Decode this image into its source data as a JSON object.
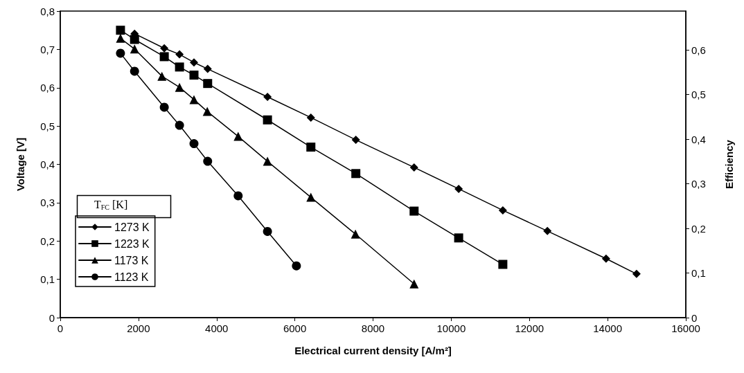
{
  "chart_data": {
    "type": "line",
    "xlabel": "Electrical current density [A/m²]",
    "ylabel": "Voltage [V]",
    "y2label": "Efficiency",
    "legend_title": "T$_{FC}$ [K]",
    "legend": "bottom left",
    "grid": false,
    "line_style": "solid",
    "xlim": [
      0,
      16000
    ],
    "xticks": [
      0,
      2000,
      4000,
      6000,
      8000,
      10000,
      12000,
      14000,
      16000
    ],
    "ylim": [
      0,
      0.8
    ],
    "yticks": [
      0,
      {
        "value": 0.1,
        "label": "0,1"
      },
      {
        "value": 0.2,
        "label": "0,2"
      },
      {
        "value": 0.3,
        "label": "0,3"
      },
      {
        "value": 0.4,
        "label": "0,4"
      },
      {
        "value": 0.5,
        "label": "0,5"
      },
      {
        "value": 0.6,
        "label": "0,6"
      },
      {
        "value": 0.7,
        "label": "0,7"
      },
      {
        "value": 0.8,
        "label": "0,8"
      }
    ],
    "y2lim": [
      0,
      0.687
    ],
    "y2ticks": [
      0,
      {
        "value": 0.1,
        "label": "0,1"
      },
      {
        "value": 0.2,
        "label": "0,2"
      },
      {
        "value": 0.3,
        "label": "0,3"
      },
      {
        "value": 0.4,
        "label": "0,4"
      },
      {
        "value": 0.5,
        "label": "0,5"
      },
      {
        "value": 0.6,
        "label": "0,6"
      }
    ],
    "series": [
      {
        "name": "1273 K",
        "color": "#000000",
        "marker": "diamond",
        "x": [
          1900,
          2660,
          3050,
          3420,
          3770,
          5300,
          6410,
          7560,
          9050,
          10190,
          11320,
          12460,
          13960,
          14740
        ],
        "values": [
          0.741,
          0.703,
          0.687,
          0.666,
          0.649,
          0.576,
          0.522,
          0.464,
          0.392,
          0.336,
          0.28,
          0.226,
          0.154,
          0.114
        ]
      },
      {
        "name": "1223 K",
        "color": "#000000",
        "marker": "square",
        "x": [
          1540,
          1900,
          2660,
          3050,
          3420,
          3770,
          5300,
          6410,
          7560,
          9050,
          10190,
          11320
        ],
        "values": [
          0.75,
          0.726,
          0.681,
          0.654,
          0.633,
          0.611,
          0.516,
          0.445,
          0.376,
          0.278,
          0.208,
          0.139
        ]
      },
      {
        "name": "1173 K",
        "color": "#000000",
        "marker": "triangle",
        "x": [
          1540,
          1900,
          2600,
          3050,
          3420,
          3760,
          4550,
          5300,
          6410,
          7550,
          9050
        ],
        "values": [
          0.729,
          0.701,
          0.63,
          0.601,
          0.569,
          0.538,
          0.473,
          0.408,
          0.314,
          0.218,
          0.088
        ]
      },
      {
        "name": "1123 K",
        "color": "#000000",
        "marker": "circle",
        "x": [
          1540,
          1900,
          2660,
          3050,
          3420,
          3770,
          4550,
          5300,
          6040
        ],
        "values": [
          0.69,
          0.643,
          0.549,
          0.502,
          0.454,
          0.408,
          0.318,
          0.225,
          0.135
        ]
      }
    ]
  }
}
